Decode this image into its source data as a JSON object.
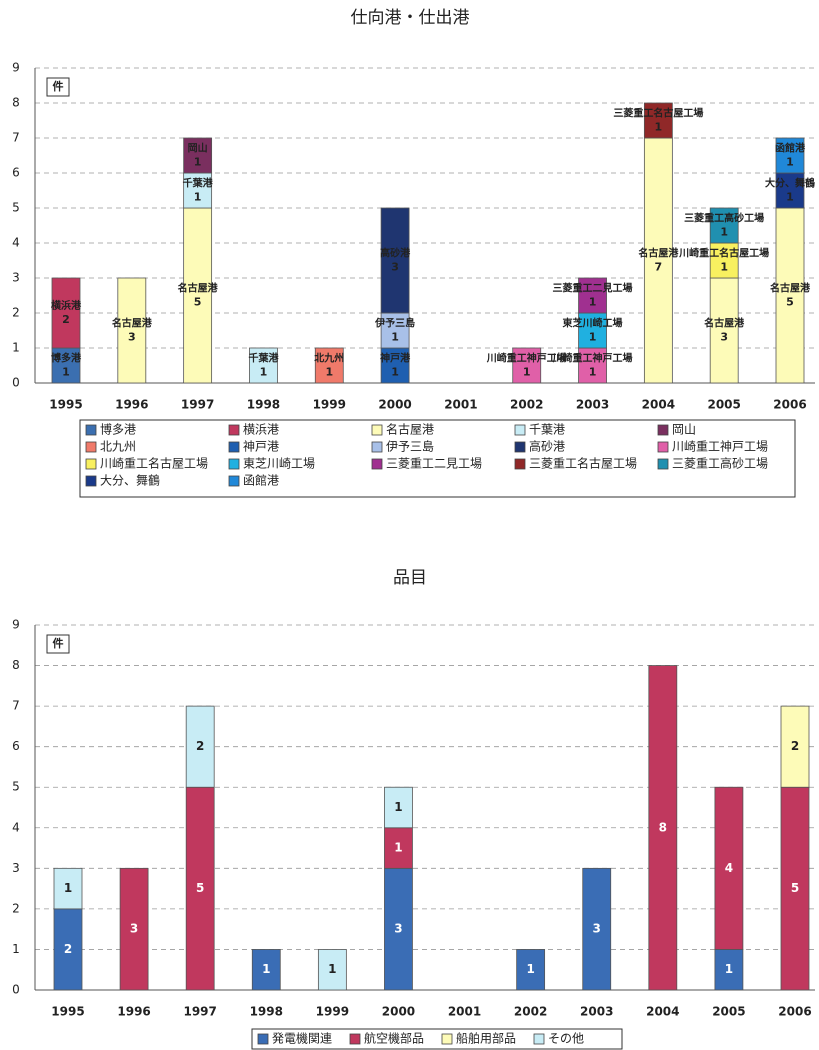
{
  "chart_data": [
    {
      "type": "stacked_bar",
      "title": "仕向港・仕出港",
      "unit_label": "件",
      "data_labels": "name_value",
      "grid": true,
      "legend": "bottom",
      "categories": [
        "1995",
        "1996",
        "1997",
        "1998",
        "1999",
        "2000",
        "2001",
        "2002",
        "2003",
        "2004",
        "2005",
        "2006"
      ],
      "ylim": [
        0,
        9
      ],
      "yticks": [
        0,
        1,
        2,
        3,
        4,
        5,
        6,
        7,
        8,
        9
      ],
      "series": [
        {
          "name": "博多港",
          "color": "#3b6fb0",
          "values": [
            1,
            0,
            0,
            0,
            0,
            0,
            0,
            0,
            0,
            0,
            0,
            0
          ]
        },
        {
          "name": "横浜港",
          "color": "#c0385e",
          "values": [
            2,
            0,
            0,
            0,
            0,
            0,
            0,
            0,
            0,
            0,
            0,
            0
          ]
        },
        {
          "name": "名古屋港",
          "color": "#fdfbb8",
          "values": [
            0,
            3,
            5,
            0,
            0,
            0,
            0,
            0,
            0,
            7,
            3,
            5
          ]
        },
        {
          "name": "千葉港",
          "color": "#c8ecf5",
          "values": [
            0,
            0,
            1,
            1,
            0,
            0,
            0,
            0,
            0,
            0,
            0,
            0
          ]
        },
        {
          "name": "岡山",
          "color": "#7a2f5f",
          "values": [
            0,
            0,
            1,
            0,
            0,
            0,
            0,
            0,
            0,
            0,
            0,
            0
          ]
        },
        {
          "name": "北九州",
          "color": "#f07a6a",
          "values": [
            0,
            0,
            0,
            0,
            1,
            0,
            0,
            0,
            0,
            0,
            0,
            0
          ]
        },
        {
          "name": "神戸港",
          "color": "#1f5fb0",
          "values": [
            0,
            0,
            0,
            0,
            0,
            1,
            0,
            0,
            0,
            0,
            0,
            0
          ]
        },
        {
          "name": "伊予三島",
          "color": "#a8c0e8",
          "values": [
            0,
            0,
            0,
            0,
            0,
            1,
            0,
            0,
            0,
            0,
            0,
            0
          ]
        },
        {
          "name": "高砂港",
          "color": "#1f3570",
          "values": [
            0,
            0,
            0,
            0,
            0,
            3,
            0,
            0,
            0,
            0,
            0,
            0
          ]
        },
        {
          "name": "川崎重工神戸工場",
          "color": "#e060a8",
          "values": [
            0,
            0,
            0,
            0,
            0,
            0,
            0,
            1,
            1,
            0,
            0,
            0
          ]
        },
        {
          "name": "川崎重工名古屋工場",
          "color": "#f8f060",
          "values": [
            0,
            0,
            0,
            0,
            0,
            0,
            0,
            0,
            0,
            0,
            1,
            0
          ]
        },
        {
          "name": "東芝川崎工場",
          "color": "#20b0e0",
          "values": [
            0,
            0,
            0,
            0,
            0,
            0,
            0,
            0,
            1,
            0,
            0,
            0
          ]
        },
        {
          "name": "三菱重工二見工場",
          "color": "#a03090",
          "values": [
            0,
            0,
            0,
            0,
            0,
            0,
            0,
            0,
            1,
            0,
            0,
            0
          ]
        },
        {
          "name": "三菱重工名古屋工場",
          "color": "#902828",
          "values": [
            0,
            0,
            0,
            0,
            0,
            0,
            0,
            0,
            0,
            1,
            0,
            0
          ]
        },
        {
          "name": "三菱重工高砂工場",
          "color": "#2090b0",
          "values": [
            0,
            0,
            0,
            0,
            0,
            0,
            0,
            0,
            0,
            0,
            1,
            0
          ]
        },
        {
          "name": "大分、舞鶴",
          "color": "#1a3a8a",
          "values": [
            0,
            0,
            0,
            0,
            0,
            0,
            0,
            0,
            0,
            0,
            0,
            1
          ]
        },
        {
          "name": "函館港",
          "color": "#2088d8",
          "values": [
            0,
            0,
            0,
            0,
            0,
            0,
            0,
            0,
            0,
            0,
            0,
            1
          ]
        }
      ]
    },
    {
      "type": "stacked_bar",
      "title": "品目",
      "unit_label": "件",
      "data_labels": "value",
      "grid": true,
      "legend": "bottom",
      "categories": [
        "1995",
        "1996",
        "1997",
        "1998",
        "1999",
        "2000",
        "2001",
        "2002",
        "2003",
        "2004",
        "2005",
        "2006"
      ],
      "ylim": [
        0,
        9
      ],
      "yticks": [
        0,
        1,
        2,
        3,
        4,
        5,
        6,
        7,
        8,
        9
      ],
      "series": [
        {
          "name": "発電機関連",
          "color": "#3a6db5",
          "values": [
            2,
            0,
            0,
            1,
            0,
            3,
            0,
            1,
            3,
            0,
            1,
            0
          ]
        },
        {
          "name": "航空機部品",
          "color": "#c0385e",
          "values": [
            0,
            3,
            5,
            0,
            0,
            1,
            0,
            0,
            0,
            8,
            4,
            5
          ]
        },
        {
          "name": "船舶用部品",
          "color": "#fdfbb8",
          "values": [
            0,
            0,
            0,
            0,
            0,
            0,
            0,
            0,
            0,
            0,
            0,
            2
          ]
        },
        {
          "name": "その他",
          "color": "#c8ecf5",
          "values": [
            1,
            0,
            2,
            0,
            1,
            1,
            0,
            0,
            0,
            0,
            0,
            0
          ]
        }
      ]
    }
  ]
}
